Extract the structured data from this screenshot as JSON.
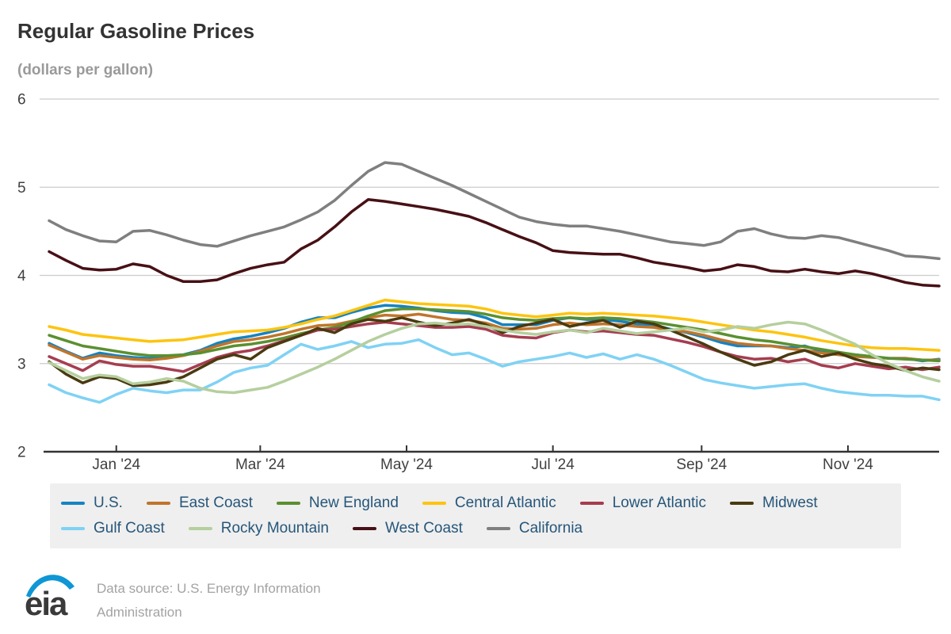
{
  "title": "Regular Gasoline Prices",
  "subtitle": "(dollars per gallon)",
  "footer": {
    "logo_text": "eia",
    "source_line1": "Data source: U.S. Energy Information",
    "source_line2": "Administration"
  },
  "chart_data": {
    "type": "line",
    "title": "Regular Gasoline Prices",
    "ylabel": "dollars per gallon",
    "xlabel": "",
    "ylim": [
      2,
      6
    ],
    "y_ticks": [
      2,
      3,
      4,
      5,
      6
    ],
    "grid": true,
    "legend_position": "bottom",
    "x_interval": "weekly",
    "x_start": "2023-12-04",
    "x_end": "2024-12-09",
    "x_ticks": [
      {
        "label": "Jan '24",
        "week": 4.0
      },
      {
        "label": "Mar '24",
        "week": 12.571
      },
      {
        "label": "May '24",
        "week": 21.286
      },
      {
        "label": "Jul '24",
        "week": 30.0
      },
      {
        "label": "Sep '24",
        "week": 38.857
      },
      {
        "label": "Nov '24",
        "week": 47.571
      }
    ],
    "series": [
      {
        "name": "U.S.",
        "color": "#1583c2",
        "values": [
          3.23,
          3.14,
          3.06,
          3.12,
          3.09,
          3.07,
          3.06,
          3.08,
          3.1,
          3.15,
          3.23,
          3.28,
          3.31,
          3.35,
          3.4,
          3.47,
          3.52,
          3.52,
          3.58,
          3.63,
          3.66,
          3.65,
          3.63,
          3.6,
          3.58,
          3.57,
          3.52,
          3.44,
          3.44,
          3.44,
          3.49,
          3.52,
          3.5,
          3.5,
          3.48,
          3.45,
          3.44,
          3.39,
          3.35,
          3.3,
          3.24,
          3.2,
          3.2,
          3.2,
          3.18,
          3.2,
          3.14,
          3.12,
          3.1,
          3.08,
          3.06,
          3.06,
          3.03,
          3.05
        ]
      },
      {
        "name": "East Coast",
        "color": "#c0752b",
        "values": [
          3.21,
          3.13,
          3.05,
          3.09,
          3.07,
          3.05,
          3.04,
          3.06,
          3.09,
          3.14,
          3.2,
          3.25,
          3.27,
          3.3,
          3.34,
          3.39,
          3.43,
          3.44,
          3.48,
          3.52,
          3.55,
          3.54,
          3.56,
          3.53,
          3.5,
          3.49,
          3.46,
          3.4,
          3.39,
          3.4,
          3.44,
          3.46,
          3.44,
          3.45,
          3.44,
          3.42,
          3.41,
          3.38,
          3.36,
          3.32,
          3.27,
          3.23,
          3.21,
          3.2,
          3.17,
          3.15,
          3.12,
          3.1,
          3.08,
          3.07,
          3.06,
          3.06,
          3.04,
          3.04
        ]
      },
      {
        "name": "New England",
        "color": "#5a9030",
        "values": [
          3.32,
          3.26,
          3.2,
          3.17,
          3.14,
          3.11,
          3.09,
          3.09,
          3.1,
          3.12,
          3.16,
          3.2,
          3.22,
          3.25,
          3.29,
          3.34,
          3.38,
          3.41,
          3.47,
          3.54,
          3.6,
          3.62,
          3.62,
          3.61,
          3.6,
          3.59,
          3.56,
          3.52,
          3.5,
          3.49,
          3.51,
          3.52,
          3.51,
          3.52,
          3.51,
          3.49,
          3.47,
          3.44,
          3.41,
          3.38,
          3.34,
          3.3,
          3.27,
          3.25,
          3.22,
          3.19,
          3.16,
          3.13,
          3.1,
          3.08,
          3.06,
          3.05,
          3.04,
          3.03
        ]
      },
      {
        "name": "Central Atlantic",
        "color": "#fdc40f",
        "values": [
          3.42,
          3.38,
          3.33,
          3.31,
          3.29,
          3.27,
          3.25,
          3.26,
          3.27,
          3.3,
          3.33,
          3.36,
          3.37,
          3.38,
          3.41,
          3.45,
          3.5,
          3.54,
          3.6,
          3.66,
          3.72,
          3.7,
          3.68,
          3.67,
          3.66,
          3.65,
          3.62,
          3.57,
          3.55,
          3.53,
          3.55,
          3.57,
          3.56,
          3.57,
          3.56,
          3.55,
          3.54,
          3.52,
          3.5,
          3.47,
          3.44,
          3.41,
          3.38,
          3.36,
          3.33,
          3.3,
          3.26,
          3.23,
          3.2,
          3.18,
          3.17,
          3.17,
          3.16,
          3.15
        ]
      },
      {
        "name": "Lower Atlantic",
        "color": "#a63d50",
        "values": [
          3.08,
          3.0,
          2.92,
          3.03,
          2.99,
          2.97,
          2.97,
          2.94,
          2.91,
          2.99,
          3.07,
          3.12,
          3.15,
          3.2,
          3.26,
          3.32,
          3.38,
          3.39,
          3.42,
          3.45,
          3.47,
          3.45,
          3.43,
          3.41,
          3.41,
          3.42,
          3.39,
          3.32,
          3.3,
          3.29,
          3.35,
          3.38,
          3.36,
          3.37,
          3.35,
          3.33,
          3.32,
          3.28,
          3.24,
          3.19,
          3.13,
          3.08,
          3.05,
          3.06,
          3.02,
          3.05,
          2.98,
          2.95,
          3.0,
          2.97,
          2.94,
          2.96,
          2.93,
          2.96
        ]
      },
      {
        "name": "Midwest",
        "color": "#4a3a10",
        "values": [
          3.02,
          2.88,
          2.78,
          2.85,
          2.83,
          2.75,
          2.76,
          2.79,
          2.85,
          2.95,
          3.05,
          3.1,
          3.05,
          3.18,
          3.25,
          3.32,
          3.4,
          3.35,
          3.45,
          3.5,
          3.48,
          3.52,
          3.47,
          3.43,
          3.46,
          3.5,
          3.44,
          3.35,
          3.42,
          3.46,
          3.5,
          3.42,
          3.46,
          3.49,
          3.41,
          3.48,
          3.45,
          3.38,
          3.3,
          3.22,
          3.13,
          3.05,
          2.98,
          3.02,
          3.1,
          3.15,
          3.08,
          3.12,
          3.05,
          3.0,
          2.97,
          2.92,
          2.95,
          2.93
        ]
      },
      {
        "name": "Gulf Coast",
        "color": "#7fd2f4",
        "values": [
          2.76,
          2.67,
          2.61,
          2.56,
          2.65,
          2.72,
          2.69,
          2.67,
          2.7,
          2.7,
          2.79,
          2.9,
          2.95,
          2.98,
          3.1,
          3.22,
          3.16,
          3.2,
          3.25,
          3.18,
          3.22,
          3.23,
          3.27,
          3.18,
          3.1,
          3.12,
          3.05,
          2.97,
          3.02,
          3.05,
          3.08,
          3.12,
          3.07,
          3.11,
          3.05,
          3.1,
          3.05,
          2.98,
          2.9,
          2.82,
          2.78,
          2.75,
          2.72,
          2.74,
          2.76,
          2.77,
          2.72,
          2.68,
          2.66,
          2.64,
          2.64,
          2.63,
          2.63,
          2.59
        ]
      },
      {
        "name": "Rocky Mountain",
        "color": "#b5cf9e",
        "values": [
          3.01,
          2.92,
          2.83,
          2.87,
          2.85,
          2.77,
          2.79,
          2.83,
          2.8,
          2.72,
          2.68,
          2.67,
          2.7,
          2.73,
          2.8,
          2.88,
          2.96,
          3.05,
          3.15,
          3.25,
          3.33,
          3.4,
          3.45,
          3.46,
          3.44,
          3.45,
          3.42,
          3.38,
          3.35,
          3.33,
          3.36,
          3.38,
          3.35,
          3.4,
          3.37,
          3.34,
          3.36,
          3.38,
          3.4,
          3.36,
          3.38,
          3.42,
          3.4,
          3.44,
          3.47,
          3.45,
          3.38,
          3.3,
          3.22,
          3.1,
          3.0,
          2.92,
          2.85,
          2.8
        ]
      },
      {
        "name": "West Coast",
        "color": "#471015",
        "values": [
          4.27,
          4.17,
          4.08,
          4.06,
          4.07,
          4.13,
          4.1,
          4.0,
          3.93,
          3.93,
          3.95,
          4.02,
          4.08,
          4.12,
          4.15,
          4.3,
          4.4,
          4.55,
          4.72,
          4.86,
          4.84,
          4.81,
          4.78,
          4.75,
          4.71,
          4.67,
          4.6,
          4.52,
          4.44,
          4.37,
          4.28,
          4.26,
          4.25,
          4.24,
          4.24,
          4.2,
          4.15,
          4.12,
          4.09,
          4.05,
          4.07,
          4.12,
          4.1,
          4.05,
          4.04,
          4.07,
          4.04,
          4.02,
          4.05,
          4.02,
          3.97,
          3.92,
          3.89,
          3.88
        ]
      },
      {
        "name": "California",
        "color": "#7f7f7f",
        "values": [
          4.62,
          4.52,
          4.45,
          4.39,
          4.38,
          4.5,
          4.51,
          4.46,
          4.4,
          4.35,
          4.33,
          4.39,
          4.45,
          4.5,
          4.55,
          4.63,
          4.72,
          4.85,
          5.02,
          5.18,
          5.28,
          5.26,
          5.18,
          5.1,
          5.02,
          4.93,
          4.84,
          4.75,
          4.66,
          4.61,
          4.58,
          4.56,
          4.56,
          4.53,
          4.5,
          4.46,
          4.42,
          4.38,
          4.36,
          4.34,
          4.38,
          4.5,
          4.53,
          4.47,
          4.43,
          4.42,
          4.45,
          4.43,
          4.38,
          4.33,
          4.28,
          4.22,
          4.21,
          4.19
        ]
      }
    ]
  }
}
